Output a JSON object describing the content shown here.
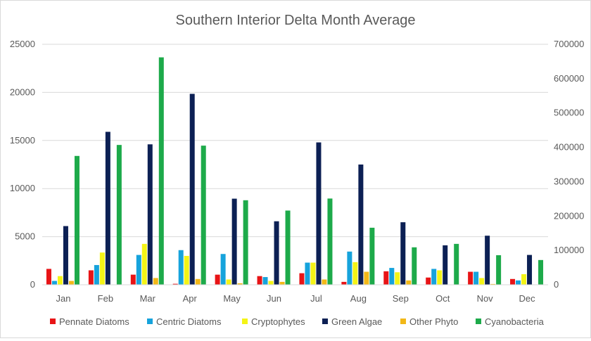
{
  "chart_data": {
    "type": "bar",
    "title": "Southern Interior Delta Month Average",
    "categories": [
      "Jan",
      "Feb",
      "Mar",
      "Apr",
      "May",
      "Jun",
      "Jul",
      "Aug",
      "Sep",
      "Oct",
      "Nov",
      "Dec"
    ],
    "y_left": {
      "min": 0,
      "max": 25000,
      "ticks": [
        "0",
        "5000",
        "10000",
        "15000",
        "20000",
        "25000"
      ]
    },
    "y_right": {
      "min": 0,
      "max": 700000,
      "ticks": [
        "0",
        "100000",
        "200000",
        "300000",
        "400000",
        "500000",
        "600000",
        "700000"
      ]
    },
    "grid": true,
    "legend_position": "bottom",
    "series": [
      {
        "name": "Pennate Diatoms",
        "color": "#e81416",
        "axis": "left",
        "values": [
          1650,
          1500,
          1050,
          100,
          1050,
          900,
          1200,
          300,
          1400,
          750,
          1350,
          600
        ]
      },
      {
        "name": "Centric Diatoms",
        "color": "#16a3dc",
        "axis": "left",
        "values": [
          400,
          2050,
          3100,
          3600,
          3200,
          800,
          2300,
          3450,
          1750,
          1650,
          1350,
          450
        ]
      },
      {
        "name": "Cryptophytes",
        "color": "#f4f416",
        "axis": "left",
        "values": [
          900,
          3350,
          4250,
          3000,
          550,
          400,
          2300,
          2350,
          1300,
          1500,
          700,
          1100
        ]
      },
      {
        "name": "Green Algae",
        "color": "#0c2054",
        "axis": "left",
        "values": [
          6100,
          15900,
          14600,
          19850,
          8950,
          6600,
          14800,
          12500,
          6500,
          4100,
          5100,
          3100
        ]
      },
      {
        "name": "Other Phyto",
        "color": "#f2b818",
        "axis": "left",
        "values": [
          400,
          0,
          700,
          600,
          150,
          300,
          550,
          1350,
          450,
          0,
          80,
          0
        ]
      },
      {
        "name": "Cyanobacteria",
        "color": "#1daa4a",
        "axis": "right",
        "values": [
          375000,
          407000,
          662000,
          405000,
          246000,
          216000,
          251000,
          166000,
          109000,
          119000,
          86000,
          72000
        ]
      }
    ]
  }
}
